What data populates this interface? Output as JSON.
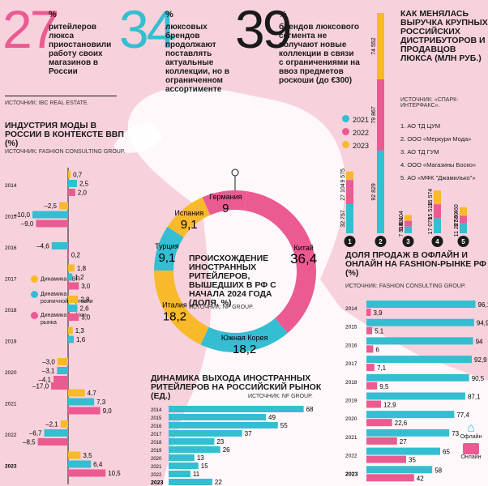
{
  "colors": {
    "pink": "#ec5a92",
    "cyan": "#35bdd2",
    "yellow": "#f8b92b",
    "bg": "#f7d2dc",
    "dark": "#1a1a1a"
  },
  "stats": [
    {
      "number": "27",
      "pct": "%",
      "text": "ритейлеров люкса приостановили работу своих магазинов в России",
      "source": "ИСТОЧНИК: IBC REAL ESTATE."
    },
    {
      "number": "34",
      "pct": "%",
      "text": "люксовых брендов продолжают поставлять актуальные коллекции, но в ограниченном ассортименте"
    },
    {
      "number": "39",
      "pct": "%",
      "text": "брендов люксового сегмента не получают новые коллекции в связи с ограничениями на ввоз предметов роскоши (до €300)"
    }
  ],
  "revenue": {
    "title": "КАК МЕНЯЛАСЬ ВЫРУЧКА КРУПНЫХ РОССИЙСКИХ ДИСТРИБУТОРОВ И ПРОДАВЦОВ ЛЮКСА (МЛН РУБ.)",
    "source": "ИСТОЧНИК: «СПАРК-ИНТЕРФАКС».",
    "legend": [
      "2021",
      "2022",
      "2023"
    ],
    "companies": [
      "1. АО ТД ЦУМ",
      "2. ООО «Меркури Мода»",
      "3. АО ТД ГУМ",
      "4. ООО «Магазины Боско»",
      "5. АО «МФК \"Джамилько\"»"
    ],
    "icons": [
      "1",
      "2",
      "3",
      "4",
      "5"
    ]
  },
  "industry": {
    "title": "ИНДУСТРИЯ МОДЫ В РОССИИ В КОНТЕКСТЕ ВВП (%)",
    "source": "ИСТОЧНИК: FASHION CONSULTING GROUP.",
    "legend": [
      "Динамика ВВП",
      "Динамика розничной торговли",
      "Динамика fashion-рынка"
    ]
  },
  "donut": {
    "title": "ПРОИСХОЖДЕНИЕ ИНОСТРАННЫХ РИТЕЙЛЕРОВ, ВЫШЕДШИХ В РФ С НАЧАЛА 2024 ГОДА (ДОЛЯ, %)",
    "source": "ИСТОЧНИК: NF GROUP."
  },
  "exits": {
    "title": "ДИНАМИКА ВЫХОДА ИНОСТРАННЫХ РИТЕЙЛЕРОВ НА РОССИЙСКИЙ РЫНОК (ЕД.)",
    "source": "ИСТОЧНИК: NF GROUP."
  },
  "share": {
    "title": "ДОЛЯ ПРОДАЖ В ОФЛАЙН И ОНЛАЙН НА FASHION-РЫНКЕ РФ (%)",
    "source": "ИСТОЧНИК: FASHION CONSULTING GROUP.",
    "legend": [
      "Офлайн",
      "Онлайн"
    ]
  },
  "chart_data": [
    {
      "type": "bar",
      "id": "revenue",
      "categories": [
        "1",
        "2",
        "3",
        "4",
        "5"
      ],
      "series": [
        {
          "name": "2021",
          "values": [
            32757,
            92829,
            7514,
            17079,
            11227
          ]
        },
        {
          "name": "2022",
          "values": [
            27104,
            79867,
            6531,
            15519,
            8580
          ]
        },
        {
          "name": "2023",
          "values": [
            9575,
            74552,
            6404,
            15574,
            9460
          ]
        }
      ]
    },
    {
      "type": "bar",
      "id": "industry",
      "orientation": "horizontal",
      "categories": [
        "2014",
        "2015",
        "2016",
        "2017",
        "2018",
        "2019",
        "2020",
        "2021",
        "2022",
        "2023"
      ],
      "series": [
        {
          "name": "Динамика ВВП",
          "values": [
            0.7,
            -2.5,
            null,
            1.8,
            2.8,
            1.3,
            -3.0,
            4.7,
            -2.1,
            3.5
          ]
        },
        {
          "name": "Динамика розничной торговли",
          "values": [
            2.5,
            -10.0,
            -4.6,
            1.2,
            2.6,
            1.6,
            -3.1,
            7.3,
            -6.7,
            6.4
          ]
        },
        {
          "name": "Динамика fashion-рынка",
          "values": [
            2.0,
            -9.0,
            0.2,
            3.0,
            3.0,
            null,
            -4.1,
            9.0,
            -8.5,
            10.5
          ]
        }
      ],
      "extra_labels": [
        {
          "year": "2020",
          "value": -17.0
        }
      ]
    },
    {
      "type": "pie",
      "id": "donut",
      "labels": [
        "Китай",
        "Южная Корея",
        "Италия",
        "Турция",
        "Испания",
        "Германия"
      ],
      "values": [
        36.4,
        18.2,
        18.2,
        9.1,
        9.1,
        9
      ]
    },
    {
      "type": "bar",
      "id": "exits",
      "orientation": "horizontal",
      "categories": [
        "2014",
        "2015",
        "2016",
        "2017",
        "2018",
        "2019",
        "2020",
        "2021",
        "2022",
        "2023"
      ],
      "values": [
        68,
        49,
        55,
        37,
        23,
        26,
        13,
        15,
        11,
        22
      ]
    },
    {
      "type": "bar",
      "id": "share",
      "orientation": "horizontal",
      "categories": [
        "2014",
        "2015",
        "2016",
        "2017",
        "2018",
        "2019",
        "2020",
        "2021",
        "2022",
        "2023"
      ],
      "series": [
        {
          "name": "Офлайн",
          "values": [
            96.1,
            94.9,
            94,
            92.9,
            90.5,
            87.1,
            77.4,
            73,
            65,
            58
          ]
        },
        {
          "name": "Онлайн",
          "values": [
            3.9,
            5.1,
            6,
            7.1,
            9.5,
            12.9,
            22.6,
            27,
            35,
            42
          ]
        }
      ]
    }
  ]
}
